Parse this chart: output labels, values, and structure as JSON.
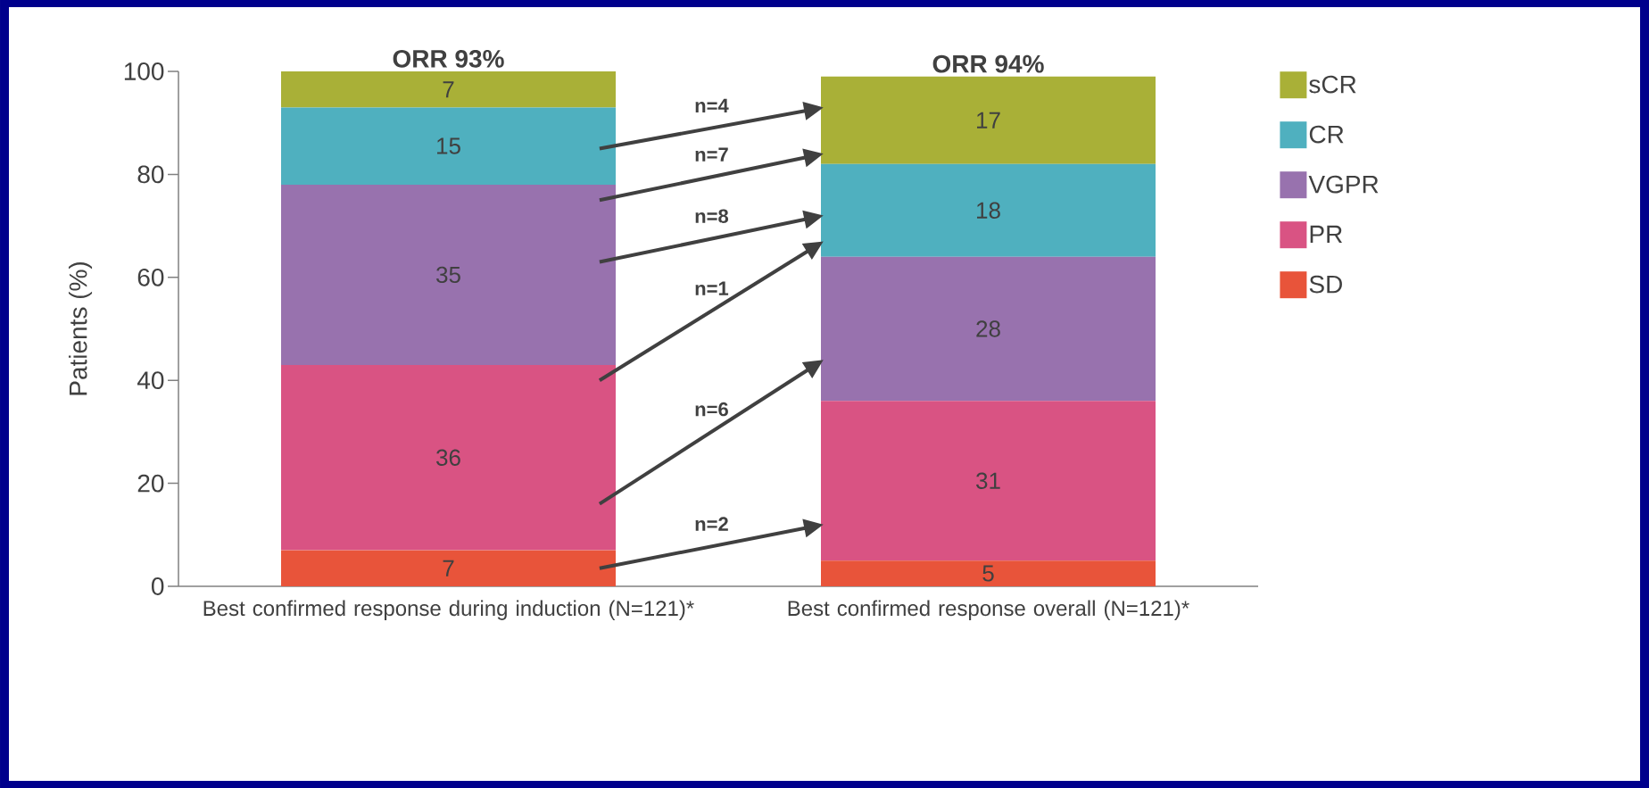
{
  "chart_data": {
    "type": "bar",
    "stacked": true,
    "ylabel": "Patients (%)",
    "categories": [
      "Best confirmed response during induction (N=121)*",
      "Best confirmed response overall (N=121)*"
    ],
    "series": [
      {
        "name": "SD",
        "color": "#e8543a",
        "values": [
          7,
          5
        ]
      },
      {
        "name": "PR",
        "color": "#d95383",
        "values": [
          36,
          31
        ]
      },
      {
        "name": "VGPR",
        "color": "#9872ae",
        "values": [
          35,
          28
        ]
      },
      {
        "name": "CR",
        "color": "#4fb0bf",
        "values": [
          15,
          18
        ]
      },
      {
        "name": "sCR",
        "color": "#a9b037",
        "values": [
          7,
          17
        ]
      }
    ],
    "ylim": [
      0,
      100
    ],
    "yticks": [
      0,
      20,
      40,
      60,
      80,
      100
    ],
    "data_labels": true,
    "legend": "right",
    "grid": false,
    "annotations": [
      {
        "text": "ORR 93%",
        "x": "Best confirmed response during induction (N=121)*",
        "y": 100
      },
      {
        "text": "ORR 94%",
        "x": "Best confirmed response overall (N=121)*",
        "y": 99
      },
      "n=4",
      "n=7",
      "n=8",
      "n=1",
      "n=6",
      "n=2"
    ]
  }
}
